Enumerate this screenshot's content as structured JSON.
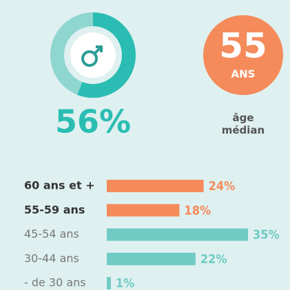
{
  "chart_data": [
    {
      "type": "pie",
      "values": [
        56
      ],
      "value_labels": [
        "56%"
      ],
      "color": "#2bbdb3",
      "rest_color": "#8fd6d1"
    },
    {
      "type": "bar",
      "orientation": "horizontal",
      "categories": [
        "60 ans et +",
        "55-59 ans",
        "45-54 ans",
        "30-44 ans",
        "- de 30 ans"
      ],
      "values": [
        24,
        18,
        35,
        22,
        1
      ],
      "value_labels": [
        "24%",
        "18%",
        "35%",
        "22%",
        "1%"
      ],
      "colors": [
        "#f58b5a",
        "#f58b5a",
        "#6fcbc4",
        "#6fcbc4",
        "#6fcbc4"
      ]
    }
  ],
  "median": {
    "value": "55",
    "unit": "ANS",
    "label": "âge médian"
  }
}
